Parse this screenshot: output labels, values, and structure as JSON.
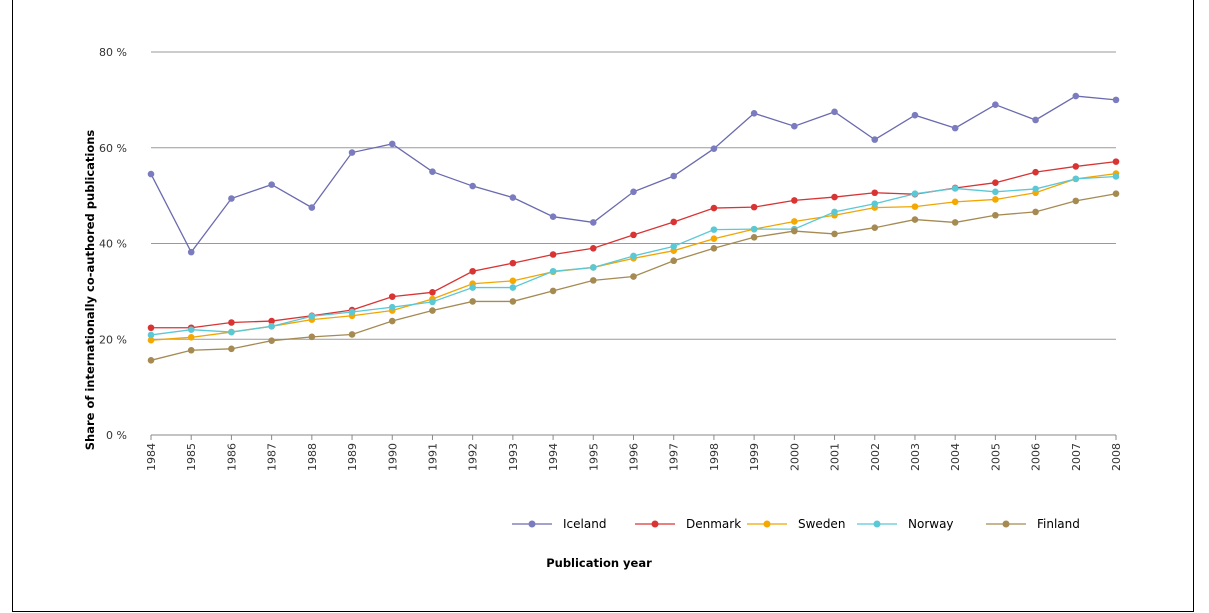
{
  "chart_data": {
    "type": "line",
    "title": "",
    "xlabel": "Publication year",
    "ylabel": "Share of internationally co-authored publications",
    "ylim": [
      0,
      80
    ],
    "yticks": [
      "0 %",
      "20 %",
      "40 %",
      "60 %",
      "80 %"
    ],
    "grid": "horizontal",
    "legend_position": "bottom-right",
    "categories": [
      "1984",
      "1985",
      "1986",
      "1987",
      "1988",
      "1989",
      "1990",
      "1991",
      "1992",
      "1993",
      "1994",
      "1995",
      "1996",
      "1997",
      "1998",
      "1999",
      "2000",
      "2001",
      "2002",
      "2003",
      "2004",
      "2005",
      "2006",
      "2007",
      "2008"
    ],
    "series": [
      {
        "name": "Iceland",
        "color": "#7b7bc0",
        "lineColor": "#6a6aaf",
        "values": [
          54.5,
          38.2,
          49.4,
          52.3,
          47.5,
          59.0,
          60.8,
          55.0,
          52.0,
          49.6,
          45.6,
          44.4,
          50.8,
          54.1,
          59.8,
          67.2,
          64.5,
          67.5,
          61.7,
          66.8,
          64.1,
          69.0,
          65.8,
          70.8,
          70.0
        ]
      },
      {
        "name": "Denmark",
        "color": "#d93434",
        "lineColor": "#d93434",
        "values": [
          22.4,
          22.4,
          23.5,
          23.8,
          24.9,
          26.1,
          28.9,
          29.8,
          34.2,
          35.9,
          37.7,
          39.0,
          41.8,
          44.5,
          47.4,
          47.6,
          49.0,
          49.7,
          50.6,
          50.3,
          51.6,
          52.7,
          54.9,
          56.1,
          57.1
        ]
      },
      {
        "name": "Sweden",
        "color": "#f5a800",
        "lineColor": "#f0a500",
        "values": [
          19.8,
          20.4,
          21.5,
          22.7,
          24.1,
          24.9,
          26.0,
          28.4,
          31.6,
          32.2,
          34.1,
          35.0,
          36.9,
          38.5,
          41.0,
          43.0,
          44.6,
          45.9,
          47.5,
          47.7,
          48.7,
          49.2,
          50.6,
          53.5,
          54.6
        ]
      },
      {
        "name": "Norway",
        "color": "#5bc8d6",
        "lineColor": "#5bc8d6",
        "values": [
          20.9,
          22.0,
          21.5,
          22.7,
          24.8,
          25.7,
          26.7,
          27.8,
          30.8,
          30.8,
          34.2,
          35.0,
          37.4,
          39.4,
          42.9,
          43.0,
          43.0,
          46.6,
          48.3,
          50.4,
          51.5,
          50.8,
          51.4,
          53.5,
          54.0
        ]
      },
      {
        "name": "Finland",
        "color": "#a58a52",
        "lineColor": "#a58a52",
        "values": [
          15.6,
          17.7,
          18.0,
          19.7,
          20.5,
          21.0,
          23.8,
          26.0,
          27.9,
          27.9,
          30.1,
          32.3,
          33.1,
          36.4,
          39.0,
          41.3,
          42.6,
          42.0,
          43.3,
          45.0,
          44.4,
          45.9,
          46.6,
          48.9,
          50.4
        ]
      }
    ]
  }
}
